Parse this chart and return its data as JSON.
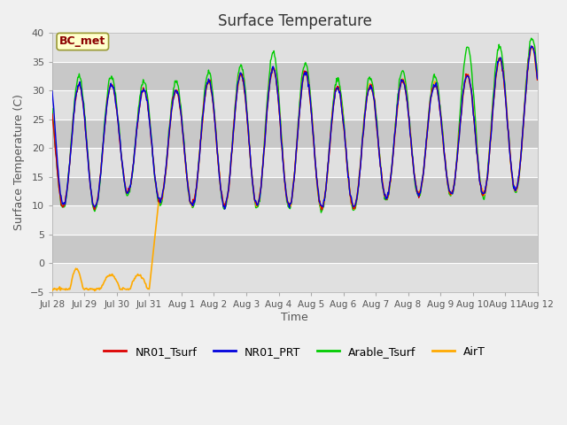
{
  "title": "Surface Temperature",
  "ylabel": "Surface Temperature (C)",
  "xlabel": "Time",
  "ylim": [
    -5,
    40
  ],
  "annotation": "BC_met",
  "legend": [
    "NR01_Tsurf",
    "NR01_PRT",
    "Arable_Tsurf",
    "AirT"
  ],
  "colors": [
    "#dd0000",
    "#0000dd",
    "#00cc00",
    "#ffaa00"
  ],
  "fig_bg": "#f0f0f0",
  "plot_bg": "#c8c8c8",
  "band_light": "#e0e0e0",
  "band_dark": "#c8c8c8"
}
